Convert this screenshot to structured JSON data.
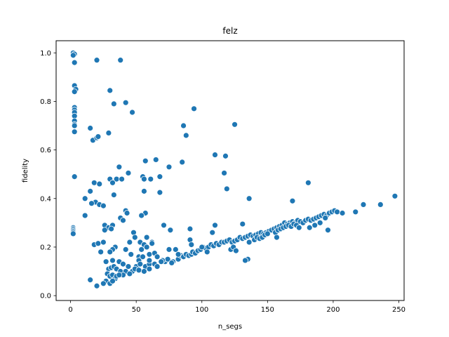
{
  "chart_data": {
    "type": "scatter",
    "title": "felz",
    "xlabel": "n_segs",
    "ylabel": "fidelity",
    "xlim": [
      -11,
      254
    ],
    "ylim": [
      -0.02,
      1.05
    ],
    "xticks": [
      0,
      50,
      100,
      150,
      200,
      250
    ],
    "yticks": [
      0.0,
      0.2,
      0.4,
      0.6,
      0.8,
      1.0
    ],
    "xtick_labels": [
      "0",
      "50",
      "100",
      "150",
      "200",
      "250"
    ],
    "ytick_labels": [
      "0.0",
      "0.2",
      "0.4",
      "0.6",
      "0.8",
      "1.0"
    ],
    "grid": false,
    "marker_color": "#1f77b4",
    "series": [
      {
        "points": [
          [
            2,
            1.0
          ],
          [
            3,
            0.995
          ],
          [
            2,
            0.99
          ],
          [
            3,
            0.96
          ],
          [
            3,
            0.865
          ],
          [
            4,
            0.85
          ],
          [
            3,
            0.84
          ],
          [
            3,
            0.775
          ],
          [
            3,
            0.765
          ],
          [
            3,
            0.755
          ],
          [
            3,
            0.74
          ],
          [
            3,
            0.72
          ],
          [
            3,
            0.705
          ],
          [
            3,
            0.7
          ],
          [
            3,
            0.675
          ],
          [
            3,
            0.49
          ],
          [
            2,
            0.28
          ],
          [
            2,
            0.275
          ],
          [
            2,
            0.27
          ],
          [
            2,
            0.265
          ],
          [
            2,
            0.26
          ],
          [
            2,
            0.255
          ],
          [
            20,
            0.97
          ],
          [
            38,
            0.97
          ],
          [
            30,
            0.845
          ],
          [
            33,
            0.79
          ],
          [
            42,
            0.795
          ],
          [
            47,
            0.755
          ],
          [
            94,
            0.77
          ],
          [
            15,
            0.69
          ],
          [
            29,
            0.67
          ],
          [
            17,
            0.64
          ],
          [
            20,
            0.65
          ],
          [
            21,
            0.655
          ],
          [
            86,
            0.7
          ],
          [
            88,
            0.66
          ],
          [
            125,
            0.705
          ],
          [
            65,
            0.56
          ],
          [
            57,
            0.555
          ],
          [
            85,
            0.55
          ],
          [
            110,
            0.58
          ],
          [
            118,
            0.575
          ],
          [
            117,
            0.505
          ],
          [
            75,
            0.53
          ],
          [
            37,
            0.53
          ],
          [
            44,
            0.505
          ],
          [
            30,
            0.48
          ],
          [
            35,
            0.48
          ],
          [
            55,
            0.49
          ],
          [
            56,
            0.48
          ],
          [
            61,
            0.48
          ],
          [
            18,
            0.465
          ],
          [
            22,
            0.46
          ],
          [
            32,
            0.465
          ],
          [
            68,
            0.49
          ],
          [
            68,
            0.425
          ],
          [
            56,
            0.43
          ],
          [
            33,
            0.415
          ],
          [
            15,
            0.43
          ],
          [
            11,
            0.4
          ],
          [
            19,
            0.385
          ],
          [
            16,
            0.38
          ],
          [
            22,
            0.375
          ],
          [
            25,
            0.37
          ],
          [
            136,
            0.4
          ],
          [
            119,
            0.44
          ],
          [
            181,
            0.465
          ],
          [
            39,
            0.48
          ],
          [
            42,
            0.35
          ],
          [
            43,
            0.34
          ],
          [
            57,
            0.34
          ],
          [
            54,
            0.33
          ],
          [
            38,
            0.32
          ],
          [
            40,
            0.31
          ],
          [
            11,
            0.33
          ],
          [
            26,
            0.29
          ],
          [
            29,
            0.28
          ],
          [
            32,
            0.29
          ],
          [
            26,
            0.27
          ],
          [
            31,
            0.275
          ],
          [
            48,
            0.26
          ],
          [
            49,
            0.24
          ],
          [
            58,
            0.24
          ],
          [
            45,
            0.22
          ],
          [
            53,
            0.22
          ],
          [
            62,
            0.22
          ],
          [
            56,
            0.21
          ],
          [
            71,
            0.29
          ],
          [
            76,
            0.27
          ],
          [
            91,
            0.275
          ],
          [
            108,
            0.26
          ],
          [
            110,
            0.29
          ],
          [
            131,
            0.295
          ],
          [
            169,
            0.39
          ],
          [
            18,
            0.21
          ],
          [
            21,
            0.215
          ],
          [
            25,
            0.22
          ],
          [
            34,
            0.2
          ],
          [
            32,
            0.19
          ],
          [
            42,
            0.19
          ],
          [
            54,
            0.19
          ],
          [
            58,
            0.2
          ],
          [
            23,
            0.18
          ],
          [
            30,
            0.18
          ],
          [
            46,
            0.17
          ],
          [
            52,
            0.16
          ],
          [
            60,
            0.17
          ],
          [
            52,
            0.145
          ],
          [
            55,
            0.16
          ],
          [
            27,
            0.14
          ],
          [
            32,
            0.145
          ],
          [
            37,
            0.14
          ],
          [
            40,
            0.13
          ],
          [
            44,
            0.12
          ],
          [
            50,
            0.12
          ],
          [
            53,
            0.13
          ],
          [
            57,
            0.12
          ],
          [
            60,
            0.13
          ],
          [
            64,
            0.13
          ],
          [
            29,
            0.11
          ],
          [
            31,
            0.115
          ],
          [
            33,
            0.12
          ],
          [
            35,
            0.11
          ],
          [
            38,
            0.1
          ],
          [
            42,
            0.1
          ],
          [
            47,
            0.1
          ],
          [
            49,
            0.11
          ],
          [
            52,
            0.105
          ],
          [
            56,
            0.1
          ],
          [
            60,
            0.11
          ],
          [
            66,
            0.12
          ],
          [
            28,
            0.09
          ],
          [
            30,
            0.08
          ],
          [
            32,
            0.085
          ],
          [
            34,
            0.07
          ],
          [
            40,
            0.085
          ],
          [
            45,
            0.09
          ],
          [
            27,
            0.06
          ],
          [
            30,
            0.05
          ],
          [
            32,
            0.06
          ],
          [
            25,
            0.05
          ],
          [
            15,
            0.065
          ],
          [
            20,
            0.04
          ],
          [
            35,
            0.08
          ],
          [
            37,
            0.085
          ],
          [
            72,
            0.14
          ],
          [
            74,
            0.15
          ],
          [
            78,
            0.14
          ],
          [
            82,
            0.15
          ],
          [
            84,
            0.165
          ],
          [
            86,
            0.16
          ],
          [
            88,
            0.17
          ],
          [
            90,
            0.165
          ],
          [
            92,
            0.17
          ],
          [
            93,
            0.18
          ],
          [
            95,
            0.175
          ],
          [
            97,
            0.185
          ],
          [
            99,
            0.19
          ],
          [
            101,
            0.2
          ],
          [
            103,
            0.195
          ],
          [
            105,
            0.2
          ],
          [
            107,
            0.21
          ],
          [
            109,
            0.205
          ],
          [
            111,
            0.215
          ],
          [
            113,
            0.21
          ],
          [
            115,
            0.22
          ],
          [
            117,
            0.22
          ],
          [
            119,
            0.225
          ],
          [
            121,
            0.23
          ],
          [
            123,
            0.22
          ],
          [
            125,
            0.225
          ],
          [
            127,
            0.23
          ],
          [
            129,
            0.24
          ],
          [
            131,
            0.235
          ],
          [
            133,
            0.24
          ],
          [
            135,
            0.245
          ],
          [
            137,
            0.25
          ],
          [
            139,
            0.245
          ],
          [
            141,
            0.25
          ],
          [
            143,
            0.255
          ],
          [
            145,
            0.26
          ],
          [
            147,
            0.255
          ],
          [
            149,
            0.26
          ],
          [
            151,
            0.265
          ],
          [
            153,
            0.27
          ],
          [
            155,
            0.275
          ],
          [
            157,
            0.28
          ],
          [
            159,
            0.285
          ],
          [
            161,
            0.29
          ],
          [
            163,
            0.3
          ],
          [
            165,
            0.295
          ],
          [
            167,
            0.3
          ],
          [
            169,
            0.305
          ],
          [
            171,
            0.3
          ],
          [
            173,
            0.31
          ],
          [
            175,
            0.305
          ],
          [
            177,
            0.3
          ],
          [
            179,
            0.31
          ],
          [
            181,
            0.315
          ],
          [
            183,
            0.31
          ],
          [
            185,
            0.315
          ],
          [
            187,
            0.32
          ],
          [
            189,
            0.325
          ],
          [
            191,
            0.33
          ],
          [
            193,
            0.335
          ],
          [
            195,
            0.33
          ],
          [
            197,
            0.34
          ],
          [
            199,
            0.345
          ],
          [
            201,
            0.35
          ],
          [
            203,
            0.345
          ],
          [
            207,
            0.34
          ],
          [
            217,
            0.345
          ],
          [
            223,
            0.375
          ],
          [
            236,
            0.375
          ],
          [
            247,
            0.41
          ],
          [
            91,
            0.23
          ],
          [
            92,
            0.21
          ],
          [
            100,
            0.2
          ],
          [
            104,
            0.18
          ],
          [
            122,
            0.19
          ],
          [
            124,
            0.2
          ],
          [
            126,
            0.185
          ],
          [
            136,
            0.22
          ],
          [
            140,
            0.23
          ],
          [
            142,
            0.24
          ],
          [
            144,
            0.235
          ],
          [
            146,
            0.24
          ],
          [
            148,
            0.25
          ],
          [
            150,
            0.255
          ],
          [
            156,
            0.26
          ],
          [
            158,
            0.27
          ],
          [
            160,
            0.275
          ],
          [
            162,
            0.28
          ],
          [
            164,
            0.285
          ],
          [
            166,
            0.29
          ],
          [
            168,
            0.285
          ],
          [
            170,
            0.295
          ],
          [
            172,
            0.29
          ],
          [
            174,
            0.28
          ],
          [
            182,
            0.28
          ],
          [
            186,
            0.29
          ],
          [
            190,
            0.3
          ],
          [
            194,
            0.32
          ],
          [
            196,
            0.27
          ],
          [
            157,
            0.24
          ],
          [
            135,
            0.15
          ],
          [
            133,
            0.145
          ],
          [
            60,
            0.145
          ],
          [
            70,
            0.145
          ],
          [
            77,
            0.135
          ],
          [
            80,
            0.19
          ],
          [
            75,
            0.19
          ],
          [
            62,
            0.215
          ],
          [
            82,
            0.17
          ],
          [
            64,
            0.175
          ],
          [
            66,
            0.16
          ],
          [
            69,
            0.14
          ]
        ]
      }
    ]
  }
}
